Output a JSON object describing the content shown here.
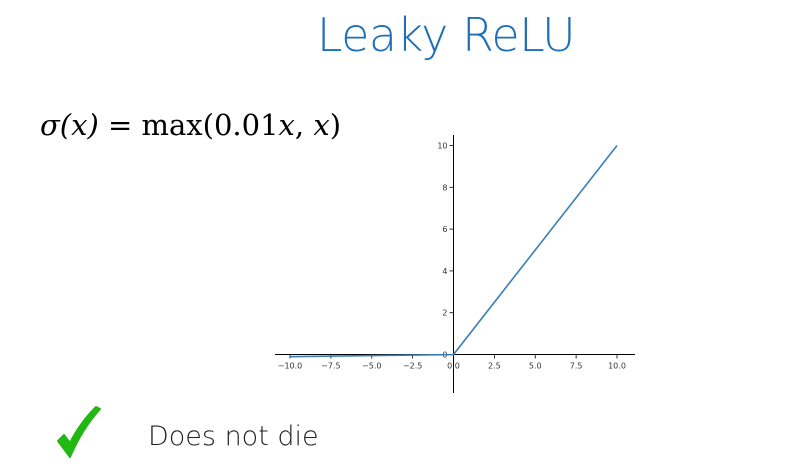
{
  "slide": {
    "title": "Leaky ReLU",
    "formula": {
      "sigma": "σ",
      "x1": "(x)",
      "eq": " = max(0.01",
      "x2": "x",
      "sep": ", ",
      "x3": "x",
      "close": ")"
    },
    "bullet": {
      "icon": "check-icon",
      "text": "Does not die"
    }
  },
  "colors": {
    "title": "#1f6fb8",
    "line": "#3a7fb8",
    "check": "#22b814"
  },
  "chart_data": {
    "type": "line",
    "title": "",
    "xlabel": "",
    "ylabel": "",
    "xlim": [
      -10.0,
      10.0
    ],
    "ylim": [
      -0.5,
      10.5
    ],
    "x_ticks": [
      "−10.0",
      "−7.5",
      "−5.0",
      "−2.5",
      "0.0",
      "2.5",
      "5.0",
      "7.5",
      "10.0"
    ],
    "y_ticks": [
      "0",
      "2",
      "4",
      "6",
      "8",
      "10"
    ],
    "grid": false,
    "series": [
      {
        "x": [
          -10.0,
          0.0,
          10.0
        ],
        "y": [
          -0.1,
          0.0,
          10.0
        ]
      }
    ]
  }
}
